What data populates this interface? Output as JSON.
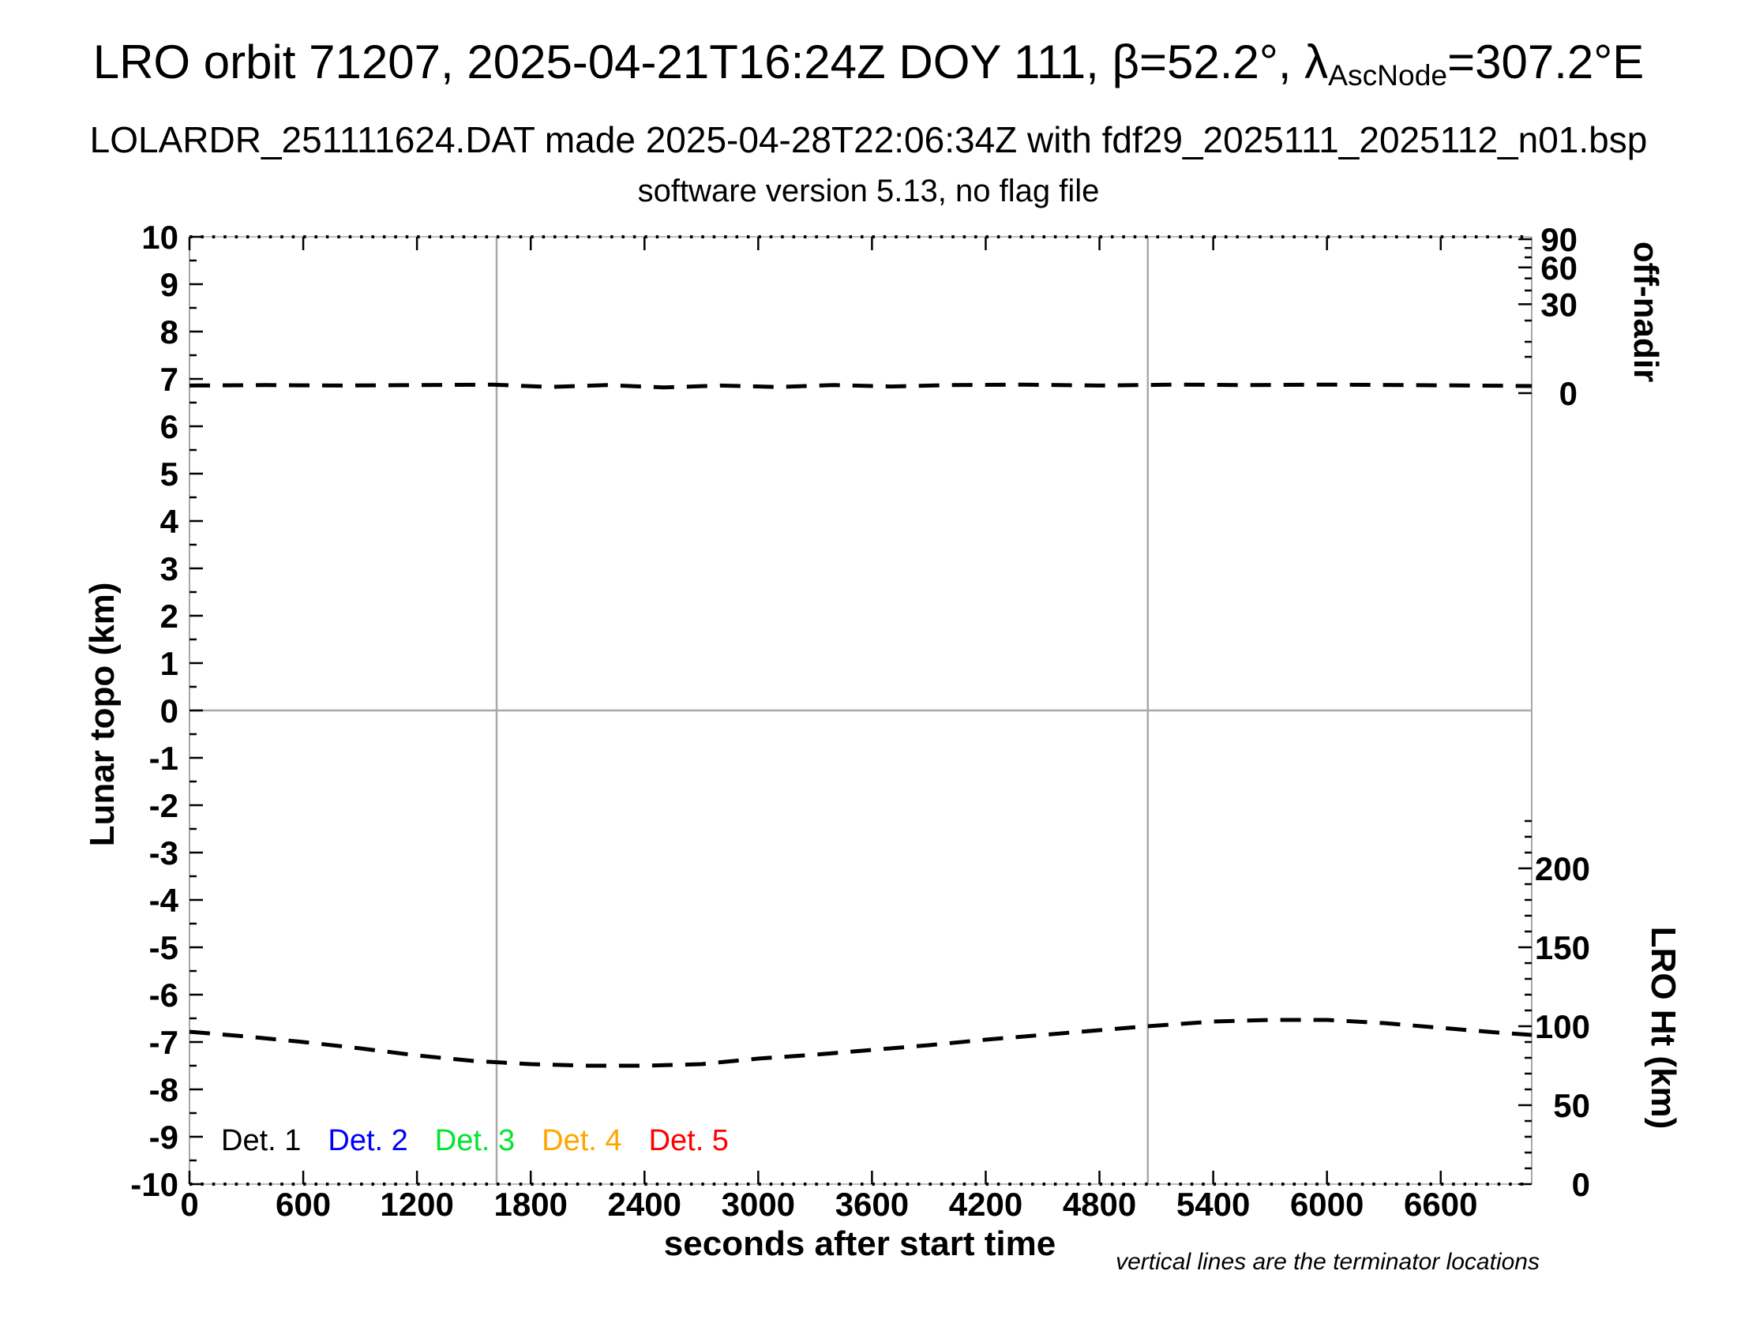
{
  "header": {
    "title_main": "LRO orbit 71207, 2025-04-21T16:24Z DOY 111, β=52.2°, λ",
    "title_subscript": "AscNode",
    "title_tail": "=307.2°E",
    "subtitle": "LOLARDR_251111624.DAT made 2025-04-28T22:06:34Z with fdf29_2025111_2025112_n01.bsp",
    "software_line": "software version 5.13, no flag file"
  },
  "colors": {
    "black": "#000000",
    "axis_gray": "#a8a8a8",
    "det1": "#000000",
    "det2": "#0000ff",
    "det3": "#00e52c",
    "det4": "#ffa500",
    "det5": "#ff0000"
  },
  "chart_data": {
    "type": "line",
    "title": "LRO orbit 71207, 2025-04-21T16:24Z DOY 111, β=52.2°, λ_AscNode=307.2°E",
    "x_axis": {
      "label": "seconds after start time",
      "range": [
        0,
        7080
      ],
      "major_ticks": [
        0,
        600,
        1200,
        1800,
        2400,
        3000,
        3600,
        4200,
        4800,
        5400,
        6000,
        6600
      ],
      "minor_tick_step_s": 60
    },
    "y_left_axis": {
      "label": "Lunar topo (km)",
      "range": [
        -10,
        10
      ],
      "major_tick_step": 1,
      "minor_tick_step": 0.5
    },
    "y_right_off_nadir_axis": {
      "label": "off-nadir",
      "major_ticks_deg": [
        90,
        60,
        30,
        0
      ],
      "minor_ticks_deg": [
        80,
        70,
        50,
        40,
        20,
        10,
        5
      ],
      "map": {
        "scale": "sqrt",
        "zero_at_left_value": 6.7,
        "span_left_units": 3.25,
        "max_deg": 90
      }
    },
    "y_right_lro_ht_axis": {
      "label": "LRO Ht (km)",
      "major_ticks_km": [
        200,
        150,
        100,
        50,
        0
      ],
      "minor_tick_step_km": 10,
      "map": {
        "km_per_left_unit": 30,
        "zero_at_left_value": -10
      }
    },
    "zero_line_left_value": 0,
    "terminator_lines_s": [
      1620,
      5055
    ],
    "series": [
      {
        "name": "spacecraft off-nadir angle (nearly nadir, ~0.2 deg)",
        "style": "dashed",
        "color": "#000000",
        "units": "left-axis-units",
        "points": [
          [
            0,
            6.86
          ],
          [
            400,
            6.87
          ],
          [
            800,
            6.86
          ],
          [
            1200,
            6.87
          ],
          [
            1600,
            6.88
          ],
          [
            1900,
            6.83
          ],
          [
            2200,
            6.87
          ],
          [
            2500,
            6.82
          ],
          [
            2800,
            6.86
          ],
          [
            3100,
            6.83
          ],
          [
            3400,
            6.87
          ],
          [
            3700,
            6.84
          ],
          [
            4000,
            6.87
          ],
          [
            4400,
            6.88
          ],
          [
            4800,
            6.86
          ],
          [
            5200,
            6.88
          ],
          [
            5600,
            6.87
          ],
          [
            6000,
            6.88
          ],
          [
            6400,
            6.87
          ],
          [
            6800,
            6.86
          ],
          [
            7080,
            6.85
          ]
        ]
      },
      {
        "name": "LRO height above surface",
        "style": "dashed",
        "color": "#000000",
        "units": "km",
        "points": [
          [
            0,
            96.5
          ],
          [
            300,
            93.5
          ],
          [
            600,
            90
          ],
          [
            900,
            86
          ],
          [
            1200,
            81.5
          ],
          [
            1500,
            78
          ],
          [
            1800,
            76
          ],
          [
            2100,
            75
          ],
          [
            2400,
            75
          ],
          [
            2700,
            76
          ],
          [
            3000,
            79.5
          ],
          [
            3300,
            82
          ],
          [
            3600,
            85
          ],
          [
            3900,
            88
          ],
          [
            4200,
            91.5
          ],
          [
            4500,
            94.5
          ],
          [
            4800,
            97.5
          ],
          [
            5055,
            100
          ],
          [
            5400,
            103
          ],
          [
            5700,
            104
          ],
          [
            6000,
            104
          ],
          [
            6300,
            102
          ],
          [
            6600,
            99
          ],
          [
            6900,
            96
          ],
          [
            7080,
            94.5
          ]
        ]
      }
    ],
    "legend_position": "bottom-left inside plot",
    "grid": "off"
  },
  "legend": {
    "items": [
      {
        "label": "Det. 1",
        "color": "#000000"
      },
      {
        "label": "Det. 2",
        "color": "#0000ff"
      },
      {
        "label": "Det. 3",
        "color": "#00e52c"
      },
      {
        "label": "Det. 4",
        "color": "#ffa500"
      },
      {
        "label": "Det. 5",
        "color": "#ff0000"
      }
    ]
  },
  "footnote": "vertical lines are the terminator locations"
}
